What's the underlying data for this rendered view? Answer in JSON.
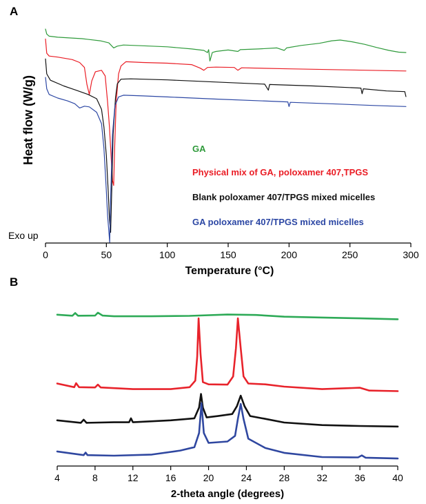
{
  "chart_data": [
    {
      "panel": "A",
      "type": "line",
      "xlabel": "Temperature (°C)",
      "ylabel": "Heat flow (W/g)",
      "annotation": "Exo up",
      "xlim": [
        0,
        300
      ],
      "xticks": [
        0,
        50,
        100,
        150,
        200,
        250,
        300
      ],
      "yticks": [],
      "grid": false,
      "legend_position": "center-right",
      "series": [
        {
          "name": "GA",
          "color": "#2e9a3a",
          "points": [
            [
              0,
              -0.2
            ],
            [
              1,
              -0.9
            ],
            [
              3,
              -1.2
            ],
            [
              10,
              -1.35
            ],
            [
              30,
              -1.55
            ],
            [
              45,
              -1.85
            ],
            [
              52,
              -2.15
            ],
            [
              56,
              -2.85
            ],
            [
              59,
              -2.6
            ],
            [
              64,
              -2.45
            ],
            [
              80,
              -2.55
            ],
            [
              100,
              -2.7
            ],
            [
              120,
              -3.0
            ],
            [
              130,
              -3.2
            ],
            [
              133,
              -3.5
            ],
            [
              134,
              -3.1
            ],
            [
              135,
              -4.7
            ],
            [
              137,
              -3.5
            ],
            [
              140,
              -3.35
            ],
            [
              150,
              -3.15
            ],
            [
              158,
              -3.35
            ],
            [
              160,
              -3.1
            ],
            [
              175,
              -3.0
            ],
            [
              190,
              -2.85
            ],
            [
              196,
              -3.2
            ],
            [
              198,
              -2.85
            ],
            [
              210,
              -2.5
            ],
            [
              225,
              -2.2
            ],
            [
              235,
              -1.85
            ],
            [
              242,
              -1.75
            ],
            [
              252,
              -2.0
            ],
            [
              262,
              -2.35
            ],
            [
              272,
              -2.8
            ],
            [
              282,
              -3.2
            ],
            [
              290,
              -3.45
            ],
            [
              296,
              -3.5
            ]
          ]
        },
        {
          "name": "Physical mix of GA, poloxamer 407,TPGS",
          "color": "#ea1c24",
          "points": [
            [
              0,
              -1.6
            ],
            [
              1,
              -3.6
            ],
            [
              3,
              -4.0
            ],
            [
              10,
              -4.15
            ],
            [
              22,
              -4.5
            ],
            [
              28,
              -4.9
            ],
            [
              32,
              -5.6
            ],
            [
              34,
              -8.0
            ],
            [
              36,
              -9.4
            ],
            [
              38,
              -7.5
            ],
            [
              41,
              -6.2
            ],
            [
              46,
              -6.0
            ],
            [
              49,
              -6.8
            ],
            [
              51,
              -10.5
            ],
            [
              52.5,
              -14.0
            ],
            [
              54,
              -18.5
            ],
            [
              55,
              -21.5
            ],
            [
              56,
              -22.2
            ],
            [
              56.8,
              -17.0
            ],
            [
              58,
              -10.5
            ],
            [
              60,
              -6.5
            ],
            [
              62,
              -5.4
            ],
            [
              66,
              -4.8
            ],
            [
              80,
              -4.9
            ],
            [
              100,
              -5.0
            ],
            [
              120,
              -5.2
            ],
            [
              127,
              -5.7
            ],
            [
              130,
              -6.0
            ],
            [
              133,
              -5.6
            ],
            [
              140,
              -5.55
            ],
            [
              155,
              -5.6
            ],
            [
              158,
              -6.0
            ],
            [
              161,
              -5.65
            ],
            [
              200,
              -5.8
            ],
            [
              250,
              -5.95
            ],
            [
              296,
              -6.1
            ]
          ]
        },
        {
          "name": "Blank poloxamer 407/TPGS mixed micelles",
          "color": "#111111",
          "points": [
            [
              0,
              -4.4
            ],
            [
              1,
              -6.5
            ],
            [
              4,
              -7.4
            ],
            [
              15,
              -8.2
            ],
            [
              25,
              -8.8
            ],
            [
              35,
              -9.4
            ],
            [
              42,
              -10.0
            ],
            [
              46,
              -11.5
            ],
            [
              48,
              -14.0
            ],
            [
              50,
              -18.0
            ],
            [
              51.5,
              -23.0
            ],
            [
              52.5,
              -27.0
            ],
            [
              53.5,
              -28.8
            ],
            [
              54.2,
              -24.0
            ],
            [
              55.5,
              -15.0
            ],
            [
              57.5,
              -9.8
            ],
            [
              59,
              -7.9
            ],
            [
              62,
              -7.25
            ],
            [
              70,
              -7.2
            ],
            [
              100,
              -7.35
            ],
            [
              140,
              -7.65
            ],
            [
              180,
              -7.95
            ],
            [
              183,
              -8.8
            ],
            [
              184,
              -8.0
            ],
            [
              220,
              -8.2
            ],
            [
              259,
              -8.5
            ],
            [
              260,
              -9.3
            ],
            [
              261,
              -8.6
            ],
            [
              280,
              -8.9
            ],
            [
              295,
              -9.0
            ],
            [
              296,
              -9.7
            ]
          ]
        },
        {
          "name": "GA poloxamer 407/TPGS mixed micelles",
          "color": "#2c47a4",
          "points": [
            [
              0,
              -7.0
            ],
            [
              1,
              -8.6
            ],
            [
              3,
              -9.4
            ],
            [
              10,
              -9.9
            ],
            [
              18,
              -10.3
            ],
            [
              24,
              -10.7
            ],
            [
              28,
              -11.3
            ],
            [
              32,
              -11.05
            ],
            [
              36,
              -11.15
            ],
            [
              42,
              -11.9
            ],
            [
              46,
              -13.5
            ],
            [
              48,
              -17.0
            ],
            [
              50,
              -23.0
            ],
            [
              51,
              -26.5
            ],
            [
              52,
              -28.6
            ],
            [
              52.7,
              -30.2
            ],
            [
              53.5,
              -24.0
            ],
            [
              55,
              -15.0
            ],
            [
              57,
              -11.0
            ],
            [
              60,
              -9.75
            ],
            [
              64,
              -9.5
            ],
            [
              80,
              -9.6
            ],
            [
              100,
              -9.75
            ],
            [
              140,
              -10.05
            ],
            [
              199,
              -10.45
            ],
            [
              200,
              -11.1
            ],
            [
              201,
              -10.5
            ],
            [
              240,
              -10.75
            ],
            [
              270,
              -10.95
            ],
            [
              296,
              -11.1
            ]
          ]
        }
      ]
    },
    {
      "panel": "B",
      "type": "line",
      "xlabel": "2-theta angle (degrees)",
      "ylabel": "",
      "xlim": [
        4,
        40
      ],
      "xticks": [
        4,
        8,
        12,
        16,
        20,
        24,
        28,
        32,
        36,
        40
      ],
      "yticks": [],
      "grid": false,
      "series": [
        {
          "color": "#2eaa57",
          "points": [
            [
              4,
              -0.2
            ],
            [
              5.6,
              -0.55
            ],
            [
              5.9,
              0.4
            ],
            [
              6.2,
              -0.55
            ],
            [
              8,
              -0.5
            ],
            [
              8.3,
              0.5
            ],
            [
              8.8,
              -0.5
            ],
            [
              10,
              -0.75
            ],
            [
              14,
              -0.75
            ],
            [
              18,
              -0.6
            ],
            [
              22,
              -0.15
            ],
            [
              25,
              -0.3
            ],
            [
              28,
              -0.9
            ],
            [
              32,
              -1.2
            ],
            [
              36,
              -1.5
            ],
            [
              40,
              -1.8
            ]
          ]
        },
        {
          "color": "#e8232b",
          "points": [
            [
              4,
              -24.5
            ],
            [
              5.8,
              -25.8
            ],
            [
              6.0,
              -24.4
            ],
            [
              6.3,
              -25.8
            ],
            [
              8,
              -25.9
            ],
            [
              8.3,
              -24.9
            ],
            [
              8.6,
              -25.9
            ],
            [
              12,
              -26.5
            ],
            [
              16,
              -26.5
            ],
            [
              18,
              -25.8
            ],
            [
              18.6,
              -23.5
            ],
            [
              18.8,
              -15.0
            ],
            [
              18.95,
              -1.5
            ],
            [
              19.15,
              -14.0
            ],
            [
              19.4,
              -24.0
            ],
            [
              20,
              -24.8
            ],
            [
              22,
              -24.9
            ],
            [
              22.6,
              -22.0
            ],
            [
              22.9,
              -12.0
            ],
            [
              23.1,
              -1.5
            ],
            [
              23.4,
              -12.0
            ],
            [
              23.7,
              -22.0
            ],
            [
              24.2,
              -24.5
            ],
            [
              26,
              -24.8
            ],
            [
              28,
              -25.6
            ],
            [
              32,
              -26.5
            ],
            [
              36,
              -26.0
            ],
            [
              37,
              -27.0
            ],
            [
              40,
              -27.2
            ]
          ]
        },
        {
          "color": "#111111",
          "points": [
            [
              4,
              -37.5
            ],
            [
              6.5,
              -38.4
            ],
            [
              6.8,
              -37.3
            ],
            [
              7.1,
              -38.4
            ],
            [
              10,
              -38.2
            ],
            [
              11.6,
              -38.2
            ],
            [
              11.8,
              -36.8
            ],
            [
              12.0,
              -38.2
            ],
            [
              16,
              -37.5
            ],
            [
              18.5,
              -36.8
            ],
            [
              19.0,
              -33.0
            ],
            [
              19.2,
              -28.2
            ],
            [
              19.4,
              -33.0
            ],
            [
              19.8,
              -36.5
            ],
            [
              21,
              -36.0
            ],
            [
              22.5,
              -35.3
            ],
            [
              23.0,
              -32.5
            ],
            [
              23.4,
              -28.8
            ],
            [
              23.8,
              -32.5
            ],
            [
              24.4,
              -36.0
            ],
            [
              26,
              -37.0
            ],
            [
              28,
              -38.3
            ],
            [
              32,
              -39.2
            ],
            [
              36,
              -39.5
            ],
            [
              40,
              -39.7
            ]
          ]
        },
        {
          "color": "#2f47a0",
          "points": [
            [
              4,
              -48.5
            ],
            [
              6.8,
              -49.8
            ],
            [
              7.0,
              -48.9
            ],
            [
              7.2,
              -49.8
            ],
            [
              10,
              -50.0
            ],
            [
              14,
              -49.6
            ],
            [
              17,
              -48.2
            ],
            [
              18.5,
              -47.0
            ],
            [
              19.0,
              -42.0
            ],
            [
              19.25,
              -31.5
            ],
            [
              19.5,
              -42.0
            ],
            [
              20,
              -45.5
            ],
            [
              22,
              -45.0
            ],
            [
              22.8,
              -43.0
            ],
            [
              23.1,
              -37.0
            ],
            [
              23.4,
              -31.7
            ],
            [
              23.7,
              -37.0
            ],
            [
              24.2,
              -44.0
            ],
            [
              26,
              -47.3
            ],
            [
              28,
              -49.0
            ],
            [
              32,
              -50.5
            ],
            [
              35.8,
              -50.6
            ],
            [
              36.2,
              -49.9
            ],
            [
              36.6,
              -50.7
            ],
            [
              40,
              -51.0
            ]
          ]
        }
      ]
    }
  ]
}
